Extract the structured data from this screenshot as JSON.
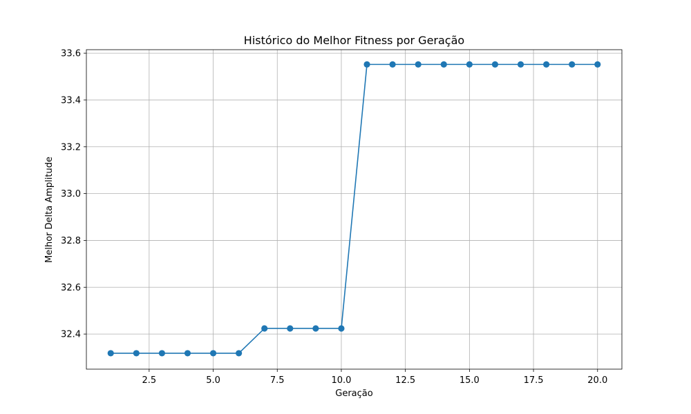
{
  "chart_data": {
    "type": "line",
    "title": "Histórico do Melhor Fitness por Geração",
    "xlabel": "Geração",
    "ylabel": "Melhor Delta Amplitude",
    "xlim": [
      0.05,
      20.95
    ],
    "ylim": [
      32.25,
      33.615
    ],
    "x_ticks": [
      2.5,
      5.0,
      7.5,
      10.0,
      12.5,
      15.0,
      17.5,
      20.0
    ],
    "x_tick_labels": [
      "2.5",
      "5.0",
      "7.5",
      "10.0",
      "12.5",
      "15.0",
      "17.5",
      "20.0"
    ],
    "y_ticks": [
      32.4,
      32.6,
      32.8,
      33.0,
      33.2,
      33.4,
      33.6
    ],
    "y_tick_labels": [
      "32.4",
      "32.6",
      "32.8",
      "33.0",
      "33.2",
      "33.4",
      "33.6"
    ],
    "grid": true,
    "series": [
      {
        "color": "#1f77b4",
        "marker": "circle",
        "x": [
          1,
          2,
          3,
          4,
          5,
          6,
          7,
          8,
          9,
          10,
          11,
          12,
          13,
          14,
          15,
          16,
          17,
          18,
          19,
          20
        ],
        "values": [
          32.318,
          32.318,
          32.318,
          32.318,
          32.318,
          32.318,
          32.424,
          32.424,
          32.424,
          32.424,
          33.552,
          33.552,
          33.552,
          33.552,
          33.552,
          33.552,
          33.552,
          33.552,
          33.552,
          33.552
        ]
      }
    ]
  }
}
